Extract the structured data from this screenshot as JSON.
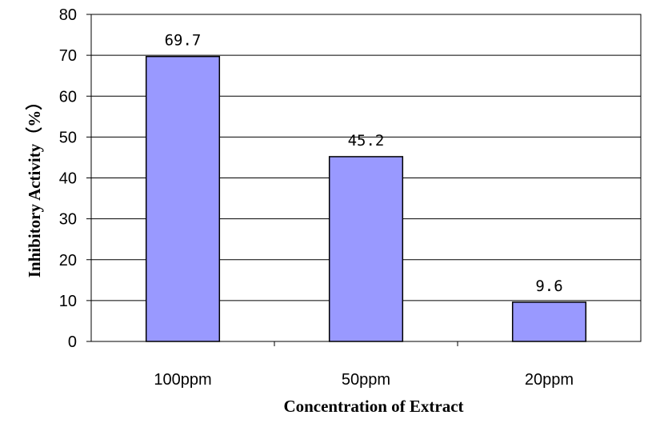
{
  "chart_data": {
    "type": "bar",
    "categories": [
      "100ppm",
      "50ppm",
      "20ppm"
    ],
    "values": [
      69.7,
      45.2,
      9.6
    ],
    "data_labels": [
      "69.7",
      "45.2",
      "9.6"
    ],
    "title": "",
    "xlabel": "Concentration of Extract",
    "ylabel": "Inhibitory Activity（%）",
    "ylim": [
      0,
      80
    ],
    "yticks": [
      0,
      10,
      20,
      30,
      40,
      50,
      60,
      70,
      80
    ],
    "grid": true,
    "legend": "none",
    "bar_color": "#9999ff",
    "bar_edge_color": "#000000"
  }
}
